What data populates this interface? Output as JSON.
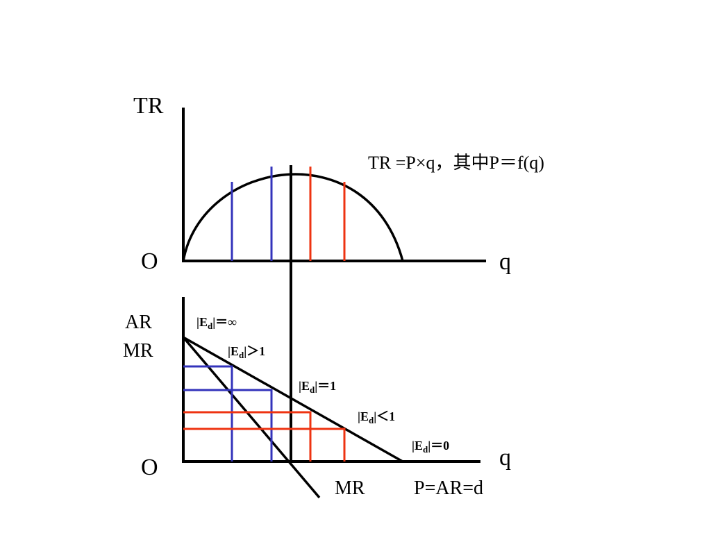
{
  "labels": {
    "tr_axis": "TR",
    "origin_top": "O",
    "q_top": "q",
    "formula": "TR =P×q，其中P＝f(q)",
    "ar_axis": "AR",
    "mr_axis": "MR",
    "origin_bottom": "O",
    "q_bottom": "q",
    "mr_curve": "MR",
    "demand_curve": "P=AR=d"
  },
  "elasticity": {
    "prefix": "|E",
    "sub": "d",
    "labels": [
      {
        "relation": "|＝∞"
      },
      {
        "relation": "|＞1"
      },
      {
        "relation": "|＝1"
      },
      {
        "relation": "|＜1"
      },
      {
        "relation": "|＝0"
      }
    ]
  },
  "colors": {
    "axis": "#000000",
    "elastic_region": "#3333bb",
    "inelastic_region": "#ee3311"
  }
}
